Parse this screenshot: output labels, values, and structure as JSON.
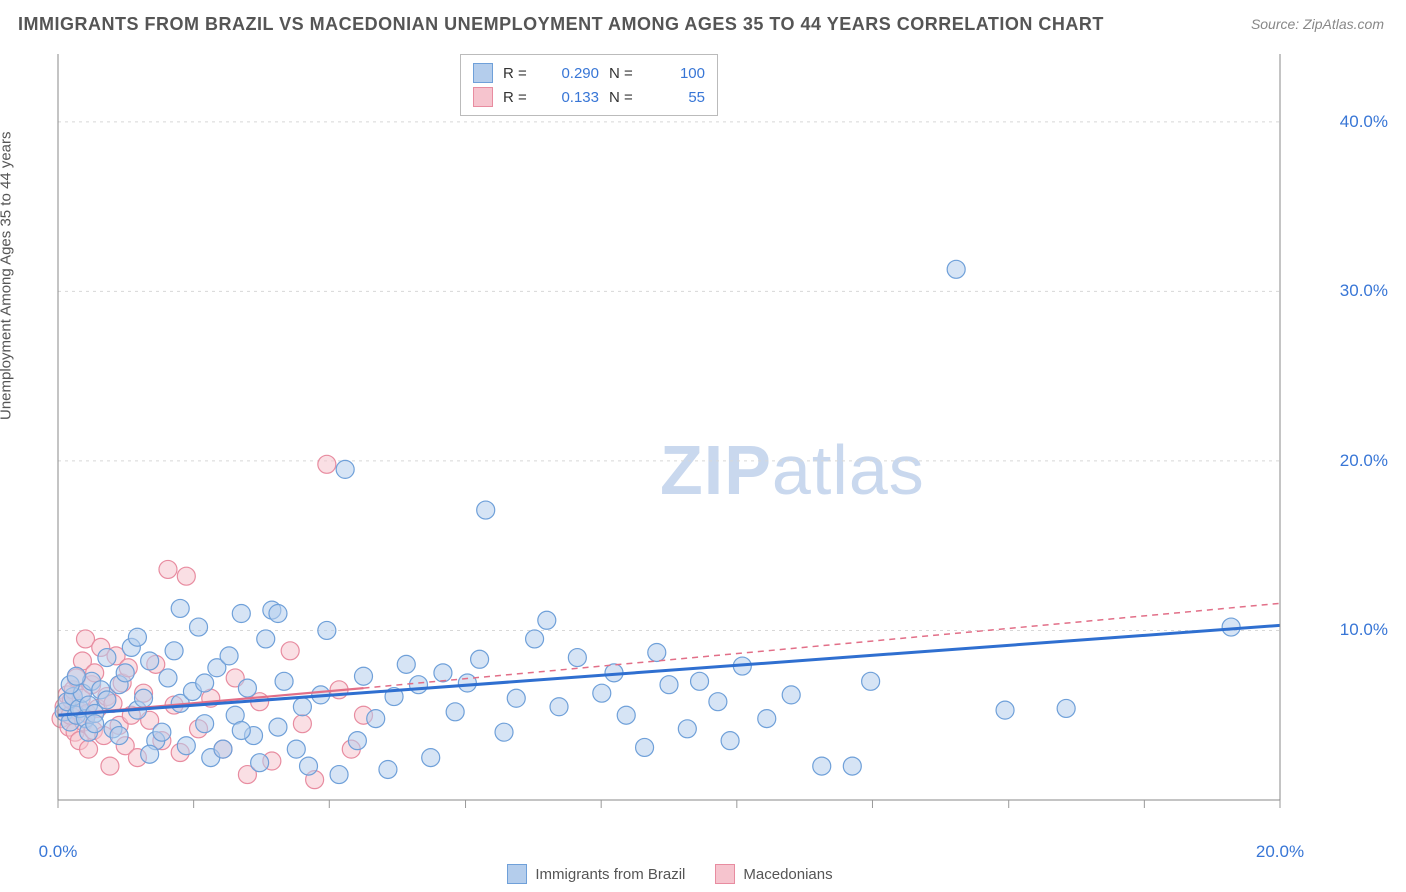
{
  "title": "IMMIGRANTS FROM BRAZIL VS MACEDONIAN UNEMPLOYMENT AMONG AGES 35 TO 44 YEARS CORRELATION CHART",
  "source": "Source: ZipAtlas.com",
  "ylabel": "Unemployment Among Ages 35 to 44 years",
  "watermark_a": "ZIP",
  "watermark_b": "atlas",
  "chart": {
    "type": "scatter",
    "background_color": "#ffffff",
    "grid_color": "#d8d8d8",
    "axis_color": "#888888",
    "tick_color": "#999999",
    "xlim": [
      0,
      20
    ],
    "ylim": [
      0,
      44
    ],
    "xticks_major": [
      0,
      20
    ],
    "xticks_minor": [
      2.22,
      4.44,
      6.67,
      8.89,
      11.11,
      13.33,
      15.56,
      17.78
    ],
    "yticks": [
      10,
      20,
      30,
      40
    ],
    "xtick_labels": {
      "0": "0.0%",
      "20": "20.0%"
    },
    "ytick_labels": {
      "10": "10.0%",
      "20": "20.0%",
      "30": "30.0%",
      "40": "40.0%"
    },
    "marker_radius": 9,
    "marker_stroke_width": 1.2,
    "trend_line_width": 2.2
  },
  "stats_legend": {
    "rows": [
      {
        "swatch_fill": "#b4cdec",
        "swatch_stroke": "#6fa0d9",
        "r": "0.290",
        "n": "100"
      },
      {
        "swatch_fill": "#f6c4ce",
        "swatch_stroke": "#e88ca0",
        "r": "0.133",
        "n": "55"
      }
    ]
  },
  "series_legend": {
    "items": [
      {
        "swatch_fill": "#b4cdec",
        "swatch_stroke": "#6fa0d9",
        "label": "Immigrants from Brazil"
      },
      {
        "swatch_fill": "#f6c4ce",
        "swatch_stroke": "#e88ca0",
        "label": "Macedonians"
      }
    ]
  },
  "series": [
    {
      "name": "brazil",
      "fill": "#b4cdec",
      "stroke": "#6fa0d9",
      "fill_opacity": 0.55,
      "trend_color": "#2f6fd0",
      "trend_dash": "none",
      "trend": {
        "x1": 0,
        "y1": 5.0,
        "x2": 20,
        "y2": 10.3
      },
      "points": [
        [
          0.1,
          5.2
        ],
        [
          0.15,
          5.8
        ],
        [
          0.2,
          4.6
        ],
        [
          0.25,
          6.1
        ],
        [
          0.3,
          5.0
        ],
        [
          0.35,
          5.4
        ],
        [
          0.4,
          6.3
        ],
        [
          0.45,
          4.8
        ],
        [
          0.5,
          5.6
        ],
        [
          0.55,
          7.0
        ],
        [
          0.6,
          5.1
        ],
        [
          0.7,
          6.5
        ],
        [
          0.8,
          5.9
        ],
        [
          0.9,
          4.2
        ],
        [
          1.0,
          6.8
        ],
        [
          1.1,
          7.5
        ],
        [
          1.2,
          9.0
        ],
        [
          1.3,
          5.3
        ],
        [
          1.4,
          6.0
        ],
        [
          1.5,
          8.2
        ],
        [
          1.6,
          3.5
        ],
        [
          1.7,
          4.0
        ],
        [
          1.8,
          7.2
        ],
        [
          1.9,
          8.8
        ],
        [
          2.0,
          5.7
        ],
        [
          2.1,
          3.2
        ],
        [
          2.2,
          6.4
        ],
        [
          2.3,
          10.2
        ],
        [
          2.4,
          4.5
        ],
        [
          2.5,
          2.5
        ],
        [
          2.6,
          7.8
        ],
        [
          2.7,
          3.0
        ],
        [
          2.8,
          8.5
        ],
        [
          2.9,
          5.0
        ],
        [
          3.0,
          11.0
        ],
        [
          3.1,
          6.6
        ],
        [
          3.2,
          3.8
        ],
        [
          3.3,
          2.2
        ],
        [
          3.4,
          9.5
        ],
        [
          3.5,
          11.2
        ],
        [
          3.6,
          4.3
        ],
        [
          3.7,
          7.0
        ],
        [
          3.9,
          3.0
        ],
        [
          4.0,
          5.5
        ],
        [
          4.1,
          2.0
        ],
        [
          4.3,
          6.2
        ],
        [
          4.4,
          10.0
        ],
        [
          4.6,
          1.5
        ],
        [
          4.7,
          19.5
        ],
        [
          4.9,
          3.5
        ],
        [
          5.0,
          7.3
        ],
        [
          5.2,
          4.8
        ],
        [
          5.4,
          1.8
        ],
        [
          5.5,
          6.1
        ],
        [
          5.7,
          8.0
        ],
        [
          5.9,
          6.8
        ],
        [
          6.1,
          2.5
        ],
        [
          6.3,
          7.5
        ],
        [
          6.5,
          5.2
        ],
        [
          6.7,
          6.9
        ],
        [
          6.9,
          8.3
        ],
        [
          7.0,
          17.1
        ],
        [
          7.3,
          4.0
        ],
        [
          7.5,
          6.0
        ],
        [
          7.8,
          9.5
        ],
        [
          8.0,
          10.6
        ],
        [
          8.2,
          5.5
        ],
        [
          8.5,
          8.4
        ],
        [
          8.9,
          6.3
        ],
        [
          9.1,
          7.5
        ],
        [
          9.3,
          5.0
        ],
        [
          9.6,
          3.1
        ],
        [
          9.8,
          8.7
        ],
        [
          10.0,
          6.8
        ],
        [
          10.3,
          4.2
        ],
        [
          10.5,
          7.0
        ],
        [
          10.8,
          5.8
        ],
        [
          11.0,
          3.5
        ],
        [
          11.2,
          7.9
        ],
        [
          11.6,
          4.8
        ],
        [
          12.0,
          6.2
        ],
        [
          12.5,
          2.0
        ],
        [
          13.0,
          2.0
        ],
        [
          13.3,
          7.0
        ],
        [
          14.7,
          31.3
        ],
        [
          15.5,
          5.3
        ],
        [
          16.5,
          5.4
        ],
        [
          19.2,
          10.2
        ],
        [
          0.2,
          6.8
        ],
        [
          0.3,
          7.3
        ],
        [
          0.5,
          4.0
        ],
        [
          0.6,
          4.5
        ],
        [
          0.8,
          8.4
        ],
        [
          1.0,
          3.8
        ],
        [
          1.3,
          9.6
        ],
        [
          1.5,
          2.7
        ],
        [
          2.0,
          11.3
        ],
        [
          2.4,
          6.9
        ],
        [
          3.0,
          4.1
        ],
        [
          3.6,
          11.0
        ]
      ]
    },
    {
      "name": "macedonians",
      "fill": "#f6c4ce",
      "stroke": "#e88ca0",
      "fill_opacity": 0.55,
      "trend_solid_color": "#e26f88",
      "trend_solid": {
        "x1": 0,
        "y1": 5.0,
        "x2": 5.0,
        "y2": 6.6
      },
      "trend_dash_color": "#e26f88",
      "trend_dash": {
        "x1": 5.0,
        "y1": 6.6,
        "x2": 20,
        "y2": 11.6
      },
      "points": [
        [
          0.05,
          4.8
        ],
        [
          0.1,
          5.5
        ],
        [
          0.15,
          6.2
        ],
        [
          0.18,
          4.3
        ],
        [
          0.2,
          5.0
        ],
        [
          0.22,
          5.9
        ],
        [
          0.25,
          6.5
        ],
        [
          0.28,
          4.0
        ],
        [
          0.3,
          7.2
        ],
        [
          0.32,
          5.3
        ],
        [
          0.35,
          3.5
        ],
        [
          0.38,
          6.0
        ],
        [
          0.4,
          8.2
        ],
        [
          0.42,
          4.6
        ],
        [
          0.45,
          9.5
        ],
        [
          0.48,
          5.1
        ],
        [
          0.5,
          3.0
        ],
        [
          0.55,
          6.8
        ],
        [
          0.58,
          4.1
        ],
        [
          0.6,
          7.5
        ],
        [
          0.65,
          5.4
        ],
        [
          0.7,
          9.0
        ],
        [
          0.75,
          3.8
        ],
        [
          0.8,
          6.1
        ],
        [
          0.85,
          2.0
        ],
        [
          0.9,
          5.7
        ],
        [
          0.95,
          8.5
        ],
        [
          1.0,
          4.4
        ],
        [
          1.05,
          6.9
        ],
        [
          1.1,
          3.2
        ],
        [
          1.15,
          7.8
        ],
        [
          1.2,
          5.0
        ],
        [
          1.3,
          2.5
        ],
        [
          1.4,
          6.3
        ],
        [
          1.5,
          4.7
        ],
        [
          1.6,
          8.0
        ],
        [
          1.7,
          3.5
        ],
        [
          1.8,
          13.6
        ],
        [
          1.9,
          5.6
        ],
        [
          2.0,
          2.8
        ],
        [
          2.1,
          13.2
        ],
        [
          2.3,
          4.2
        ],
        [
          2.5,
          6.0
        ],
        [
          2.7,
          3.0
        ],
        [
          2.9,
          7.2
        ],
        [
          3.1,
          1.5
        ],
        [
          3.3,
          5.8
        ],
        [
          3.5,
          2.3
        ],
        [
          3.8,
          8.8
        ],
        [
          4.0,
          4.5
        ],
        [
          4.2,
          1.2
        ],
        [
          4.4,
          19.8
        ],
        [
          4.6,
          6.5
        ],
        [
          4.8,
          3.0
        ],
        [
          5.0,
          5.0
        ]
      ]
    }
  ]
}
